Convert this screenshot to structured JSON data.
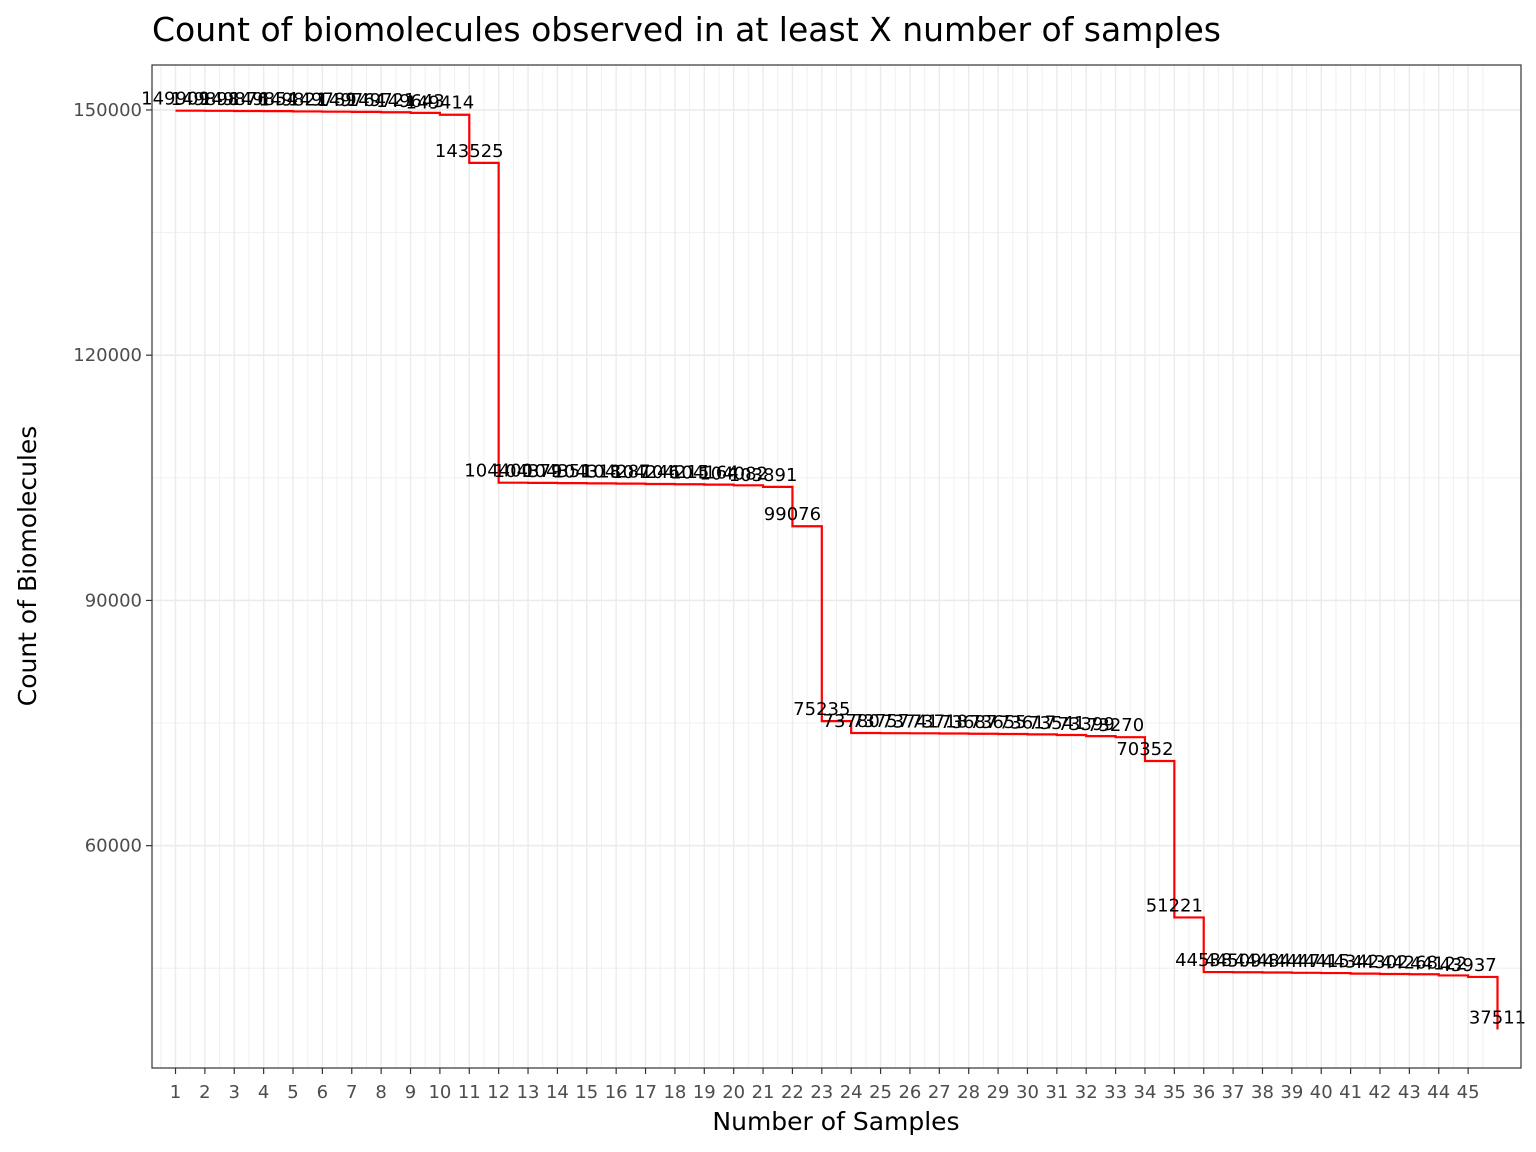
{
  "chart_data": {
    "type": "line",
    "step": true,
    "title": "Count of biomolecules observed in at least X number of samples",
    "xlabel": "Number of Samples",
    "ylabel": "Count of Biomolecules",
    "x": [
      1,
      2,
      3,
      4,
      5,
      6,
      7,
      8,
      9,
      10,
      11,
      12,
      13,
      14,
      15,
      16,
      17,
      18,
      19,
      20,
      21,
      22,
      23,
      24,
      25,
      26,
      27,
      28,
      29,
      30,
      31,
      32,
      33,
      34,
      35,
      36,
      37,
      38,
      39,
      40,
      41,
      42,
      43,
      44,
      45,
      46
    ],
    "x_tick_labels": [
      "1",
      "2",
      "3",
      "4",
      "5",
      "6",
      "7",
      "8",
      "9",
      "10",
      "11",
      "12",
      "13",
      "14",
      "15",
      "16",
      "17",
      "18",
      "19",
      "20",
      "21",
      "22",
      "23",
      "24",
      "25",
      "26",
      "27",
      "28",
      "29",
      "30",
      "31",
      "32",
      "33",
      "34",
      "35",
      "36",
      "37",
      "38",
      "39",
      "40",
      "41",
      "42",
      "43",
      "44",
      "45"
    ],
    "y_ticks": [
      60000,
      90000,
      120000,
      150000
    ],
    "y_tick_labels": [
      "60000",
      "90000",
      "120000",
      "150000"
    ],
    "ylim": [
      32800,
      155500
    ],
    "xlim": [
      0.2,
      46.8
    ],
    "grid": true,
    "line_color": "#ff0000",
    "values": [
      149909,
      149898,
      149876,
      149854,
      149821,
      149789,
      149764,
      149721,
      149643,
      149414,
      143525,
      104400,
      104379,
      104351,
      104318,
      104287,
      104246,
      104215,
      104164,
      104082,
      103891,
      99076,
      75235,
      73780,
      73757,
      73741,
      73718,
      73687,
      73655,
      73617,
      73541,
      73399,
      73270,
      70352,
      51221,
      44538,
      44509,
      44484,
      44447,
      44415,
      44342,
      44302,
      44268,
      44122,
      43937,
      37511
    ],
    "data_labels": [
      "149909",
      "149898",
      "149876",
      "149854",
      "149821",
      "149789",
      "149764",
      "149721",
      "149643",
      "149414",
      "143525",
      "104400",
      "104379",
      "104351",
      "104318",
      "104287",
      "104246",
      "104215",
      "104164",
      "104082",
      "103891",
      "99076",
      "75235",
      "73780",
      "73757",
      "73741",
      "73718",
      "73687",
      "73655",
      "73617",
      "73541",
      "73399",
      "73270",
      "70352",
      "51221",
      "44538",
      "44509",
      "44484",
      "44447",
      "44415",
      "44342",
      "44302",
      "44268",
      "44122",
      "43937",
      "37511"
    ]
  }
}
